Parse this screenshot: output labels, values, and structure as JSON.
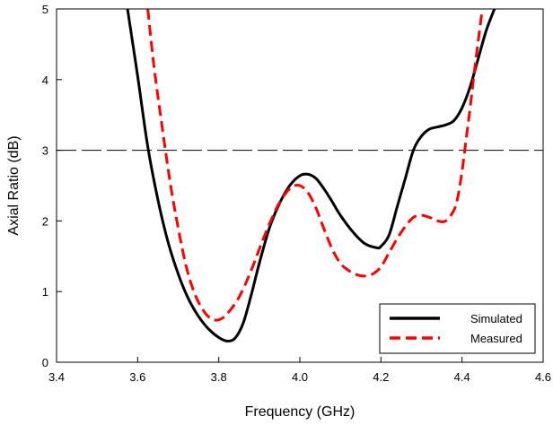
{
  "chart_data": {
    "type": "line",
    "xlabel": "Frequency (GHz)",
    "ylabel": "Axial Ratio (dB)",
    "xlim": [
      3.4,
      4.6
    ],
    "ylim": [
      0,
      5
    ],
    "xticks": [
      "3.4",
      "3.6",
      "3.8",
      "4.0",
      "4.2",
      "4.4",
      "4.6"
    ],
    "yticks": [
      "0",
      "1",
      "2",
      "3",
      "4",
      "5"
    ],
    "grid": false,
    "legend_position": "bottom-right",
    "reference_line": {
      "y": 3,
      "style": "dashed",
      "color": "#000000"
    },
    "series": [
      {
        "name": "Simulated",
        "color": "#000000",
        "style": "solid",
        "x": [
          3.575,
          3.6,
          3.625,
          3.65,
          3.675,
          3.7,
          3.725,
          3.75,
          3.775,
          3.8,
          3.82,
          3.84,
          3.86,
          3.88,
          3.9,
          3.925,
          3.95,
          3.975,
          4.0,
          4.02,
          4.04,
          4.06,
          4.08,
          4.1,
          4.13,
          4.16,
          4.19,
          4.2,
          4.22,
          4.24,
          4.26,
          4.28,
          4.3,
          4.32,
          4.34,
          4.36,
          4.38,
          4.4,
          4.42,
          4.44,
          4.46,
          4.48
        ],
        "values": [
          5.0,
          4.05,
          3.05,
          2.3,
          1.7,
          1.25,
          0.9,
          0.65,
          0.47,
          0.35,
          0.3,
          0.34,
          0.55,
          0.95,
          1.4,
          1.9,
          2.25,
          2.5,
          2.64,
          2.66,
          2.6,
          2.45,
          2.27,
          2.08,
          1.85,
          1.68,
          1.62,
          1.64,
          1.8,
          2.2,
          2.6,
          3.0,
          3.2,
          3.3,
          3.33,
          3.36,
          3.42,
          3.6,
          3.9,
          4.3,
          4.7,
          5.0
        ]
      },
      {
        "name": "Measured",
        "color": "#ff0000",
        "style": "dashed",
        "x": [
          3.625,
          3.64,
          3.66,
          3.68,
          3.7,
          3.72,
          3.74,
          3.76,
          3.78,
          3.8,
          3.82,
          3.85,
          3.88,
          3.91,
          3.94,
          3.96,
          3.98,
          4.0,
          4.02,
          4.04,
          4.06,
          4.08,
          4.1,
          4.12,
          4.14,
          4.16,
          4.18,
          4.2,
          4.22,
          4.24,
          4.26,
          4.28,
          4.3,
          4.32,
          4.34,
          4.36,
          4.38,
          4.39,
          4.4,
          4.41,
          4.42,
          4.43,
          4.44,
          4.45
        ],
        "values": [
          5.0,
          4.2,
          3.35,
          2.55,
          1.9,
          1.35,
          0.98,
          0.75,
          0.62,
          0.6,
          0.68,
          0.92,
          1.3,
          1.75,
          2.15,
          2.35,
          2.48,
          2.5,
          2.4,
          2.18,
          1.88,
          1.6,
          1.4,
          1.3,
          1.24,
          1.22,
          1.25,
          1.35,
          1.55,
          1.75,
          1.92,
          2.05,
          2.08,
          2.05,
          2.0,
          2.0,
          2.15,
          2.35,
          2.7,
          3.15,
          3.6,
          4.1,
          4.55,
          5.0
        ]
      }
    ]
  }
}
